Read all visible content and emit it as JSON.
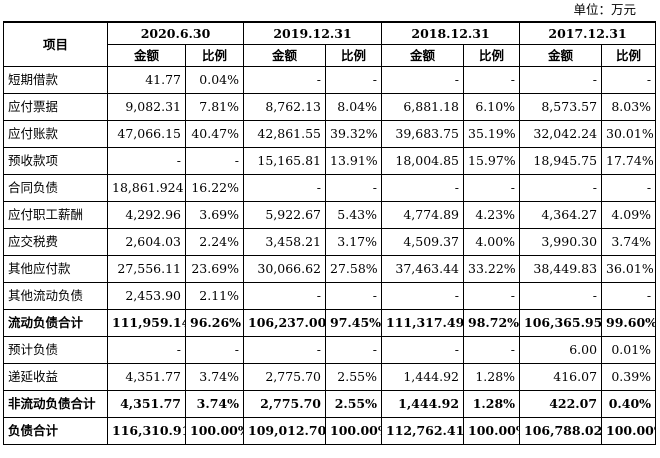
{
  "unit_label": "单位：万元",
  "header": {
    "item": "项目",
    "periods": [
      "2020.6.30",
      "2019.12.31",
      "2018.12.31",
      "2017.12.31"
    ],
    "amount": "金额",
    "ratio": "比例"
  },
  "rows": [
    {
      "label": "短期借款",
      "bold": false,
      "cells": [
        "41.77",
        "0.04%",
        "-",
        "-",
        "-",
        "-",
        "-",
        "-"
      ]
    },
    {
      "label": "应付票据",
      "bold": false,
      "cells": [
        "9,082.31",
        "7.81%",
        "8,762.13",
        "8.04%",
        "6,881.18",
        "6.10%",
        "8,573.57",
        "8.03%"
      ]
    },
    {
      "label": "应付账款",
      "bold": false,
      "cells": [
        "47,066.15",
        "40.47%",
        "42,861.55",
        "39.32%",
        "39,683.75",
        "35.19%",
        "32,042.24",
        "30.01%"
      ]
    },
    {
      "label": "预收款项",
      "bold": false,
      "cells": [
        "-",
        "-",
        "15,165.81",
        "13.91%",
        "18,004.85",
        "15.97%",
        "18,945.75",
        "17.74%"
      ]
    },
    {
      "label": "合同负债",
      "bold": false,
      "cells": [
        "18,861.924",
        "16.22%",
        "-",
        "-",
        "-",
        "-",
        "-",
        "-"
      ]
    },
    {
      "label": "应付职工薪酬",
      "bold": false,
      "cells": [
        "4,292.96",
        "3.69%",
        "5,922.67",
        "5.43%",
        "4,774.89",
        "4.23%",
        "4,364.27",
        "4.09%"
      ]
    },
    {
      "label": "应交税费",
      "bold": false,
      "cells": [
        "2,604.03",
        "2.24%",
        "3,458.21",
        "3.17%",
        "4,509.37",
        "4.00%",
        "3,990.30",
        "3.74%"
      ]
    },
    {
      "label": "其他应付款",
      "bold": false,
      "cells": [
        "27,556.11",
        "23.69%",
        "30,066.62",
        "27.58%",
        "37,463.44",
        "33.22%",
        "38,449.83",
        "36.01%"
      ]
    },
    {
      "label": "其他流动负债",
      "bold": false,
      "cells": [
        "2,453.90",
        "2.11%",
        "-",
        "-",
        "-",
        "-",
        "-",
        "-"
      ]
    },
    {
      "label": "流动负债合计",
      "bold": true,
      "cells": [
        "111,959.14",
        "96.26%",
        "106,237.00",
        "97.45%",
        "111,317.49",
        "98.72%",
        "106,365.95",
        "99.60%"
      ]
    },
    {
      "label": "预计负债",
      "bold": false,
      "cells": [
        "-",
        "-",
        "-",
        "-",
        "-",
        "-",
        "6.00",
        "0.01%"
      ]
    },
    {
      "label": "递延收益",
      "bold": false,
      "cells": [
        "4,351.77",
        "3.74%",
        "2,775.70",
        "2.55%",
        "1,444.92",
        "1.28%",
        "416.07",
        "0.39%"
      ]
    },
    {
      "label": "非流动负债合计",
      "bold": true,
      "cells": [
        "4,351.77",
        "3.74%",
        "2,775.70",
        "2.55%",
        "1,444.92",
        "1.28%",
        "422.07",
        "0.40%"
      ]
    },
    {
      "label": "负债合计",
      "bold": true,
      "cells": [
        "116,310.91",
        "100.00%",
        "109,012.70",
        "100.00%",
        "112,762.41",
        "100.00%",
        "106,788.02",
        "100.00%"
      ]
    }
  ]
}
